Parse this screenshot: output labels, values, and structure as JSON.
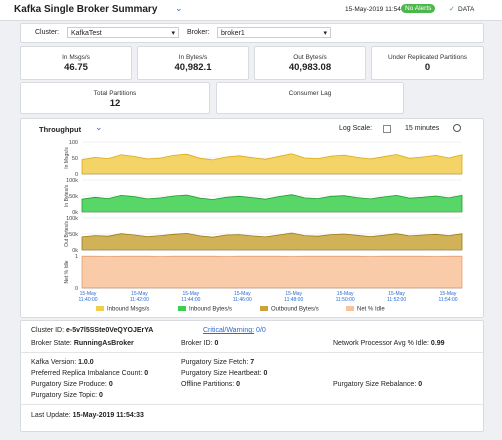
{
  "header": {
    "title": "Kafka Single Broker Summary",
    "timestamp": "15-May-2019 11:54",
    "alert_badge": "No Alerts",
    "data_label": "DATA"
  },
  "filters": {
    "cluster_label": "Cluster:",
    "cluster_value": "KafkaTest",
    "broker_label": "Broker:",
    "broker_value": "broker1"
  },
  "kpis": [
    {
      "label": "In Msgs/s",
      "value": "46.75"
    },
    {
      "label": "In Bytes/s",
      "value": "40,982.1"
    },
    {
      "label": "Out Bytes/s",
      "value": "40,983.08"
    },
    {
      "label": "Under Replicated Partitions",
      "value": "0"
    },
    {
      "label": "Total Partitions",
      "value": "12"
    },
    {
      "label": "Consumer Lag"
    }
  ],
  "throughput": {
    "title": "Throughput",
    "log_scale_label": "Log Scale:",
    "time_range": "15 minutes",
    "x_labels": [
      {
        "date": "15-May",
        "time": "11:40:00"
      },
      {
        "date": "15-May",
        "time": "11:42:00"
      },
      {
        "date": "15-May",
        "time": "11:44:00"
      },
      {
        "date": "15-May",
        "time": "11:46:00"
      },
      {
        "date": "15-May",
        "time": "11:48:00"
      },
      {
        "date": "15-May",
        "time": "11:50:00"
      },
      {
        "date": "15-May",
        "time": "11:52:00"
      },
      {
        "date": "15-May",
        "time": "11:54:00"
      }
    ],
    "charts": [
      {
        "name": "Inbound Msgs/s",
        "axis_label": "In Msgs/s",
        "color": "#f2cd4c",
        "stroke": "#d9ac10",
        "ylim": [
          0,
          100
        ],
        "yticks": [
          0,
          50,
          100
        ],
        "values": [
          45,
          52,
          48,
          60,
          55,
          47,
          50,
          58,
          62,
          49,
          44,
          53,
          57,
          51,
          46,
          55,
          63,
          50,
          48,
          56,
          59,
          52,
          47,
          54,
          61,
          49,
          53,
          58,
          50,
          60
        ]
      },
      {
        "name": "Inbound Bytes/s",
        "axis_label": "In Bytes/s",
        "color": "#3ccf4e",
        "stroke": "#1f9e2f",
        "ylim": [
          0,
          100000
        ],
        "yticks": [
          {
            "value": 0,
            "label": "0k"
          },
          {
            "value": 50000,
            "label": "50k"
          },
          {
            "value": 100000,
            "label": "100k"
          }
        ],
        "values": [
          40000,
          46000,
          42000,
          52000,
          48000,
          41000,
          44000,
          50000,
          53000,
          43000,
          39000,
          46000,
          49000,
          45000,
          40000,
          48000,
          54000,
          44000,
          42000,
          49000,
          51000,
          45000,
          41000,
          47000,
          52000,
          43000,
          46000,
          50000,
          44000,
          52000
        ]
      },
      {
        "name": "Outbound Bytes/s",
        "axis_label": "Out Bytes/s",
        "color": "#c9a43a",
        "stroke": "#9a7a18",
        "ylim": [
          0,
          100000
        ],
        "yticks": [
          {
            "value": 0,
            "label": "0k"
          },
          {
            "value": 50000,
            "label": "50k"
          },
          {
            "value": 100000,
            "label": "100k"
          }
        ],
        "values": [
          41000,
          45000,
          43000,
          51000,
          47000,
          42000,
          45000,
          49000,
          52000,
          44000,
          40000,
          47000,
          48000,
          44000,
          41000,
          47000,
          53000,
          45000,
          43000,
          48000,
          50000,
          46000,
          42000,
          46000,
          51000,
          44000,
          47000,
          49000,
          45000,
          51000
        ]
      },
      {
        "name": "Net % Idle",
        "axis_label": "Net % Idle",
        "color": "#f8c29a",
        "stroke": "#e8a070",
        "ylim": [
          0,
          1
        ],
        "yticks": [
          0,
          1
        ],
        "values": [
          0.99,
          0.99,
          0.98,
          0.99,
          0.99,
          0.99,
          0.98,
          0.99,
          0.99,
          0.99,
          0.99,
          0.98,
          0.99,
          0.99,
          0.99,
          0.99,
          0.98,
          0.99,
          0.99,
          0.99,
          0.99,
          0.99,
          0.98,
          0.99,
          0.99,
          0.99,
          0.99,
          0.98,
          0.99,
          0.99
        ]
      }
    ]
  },
  "details": {
    "cluster_id_label": "Cluster ID:",
    "cluster_id": "e-5v7l5SSte0VeQYOJErYA",
    "critical_warning_label": "Critical/Warning:",
    "critical_warning": "0/0",
    "broker_state_label": "Broker State:",
    "broker_state": "RunningAsBroker",
    "broker_id_label": "Broker ID:",
    "broker_id": "0",
    "net_idle_label": "Network Processor Avg % Idle:",
    "net_idle": "0.99",
    "kafka_version_label": "Kafka Version:",
    "kafka_version": "1.0.0",
    "purg_fetch_label": "Purgatory Size Fetch:",
    "purg_fetch": "7",
    "replica_imbalance_label": "Preferred Replica Imbalance Count:",
    "replica_imbalance": "0",
    "purg_heartbeat_label": "Purgatory Size Heartbeat:",
    "purg_heartbeat": "0",
    "purg_produce_label": "Purgatory Size Produce:",
    "purg_produce": "0",
    "offline_partitions_label": "Offline Partitions:",
    "offline_partitions": "0",
    "purg_rebalance_label": "Purgatory Size Rebalance:",
    "purg_rebalance": "0",
    "purg_topic_label": "Purgatory Size Topic:",
    "purg_topic": "0"
  },
  "footer": {
    "label": "Last Update:",
    "value": "15-May-2019 11:54:33"
  }
}
